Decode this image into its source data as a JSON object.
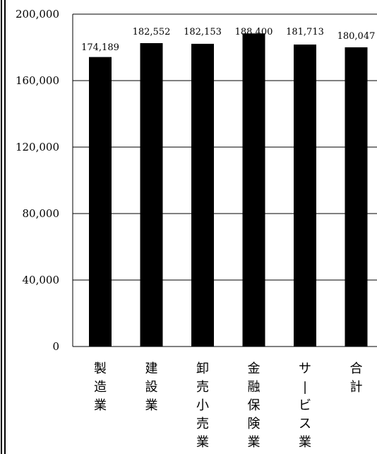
{
  "chart_data": {
    "type": "bar",
    "categories": [
      "製造業",
      "建設業",
      "卸売小売業",
      "金融保険業",
      "サービス業",
      "合計"
    ],
    "values": [
      174189,
      182552,
      182153,
      188400,
      181713,
      180047
    ],
    "data_labels": [
      "174,189",
      "182,552",
      "182,153",
      "188,400",
      "181,713",
      "180,047"
    ],
    "yticks": [
      0,
      40000,
      80000,
      120000,
      160000,
      200000
    ],
    "ytick_labels": [
      "0",
      "40,000",
      "80,000",
      "120,000",
      "160,000",
      "200,000"
    ],
    "ylim": [
      0,
      200000
    ],
    "title": "",
    "xlabel": "",
    "ylabel": "",
    "grid": true,
    "colors": {
      "bar": "#000000",
      "grid": "#000000",
      "background": "#ffffff"
    }
  }
}
